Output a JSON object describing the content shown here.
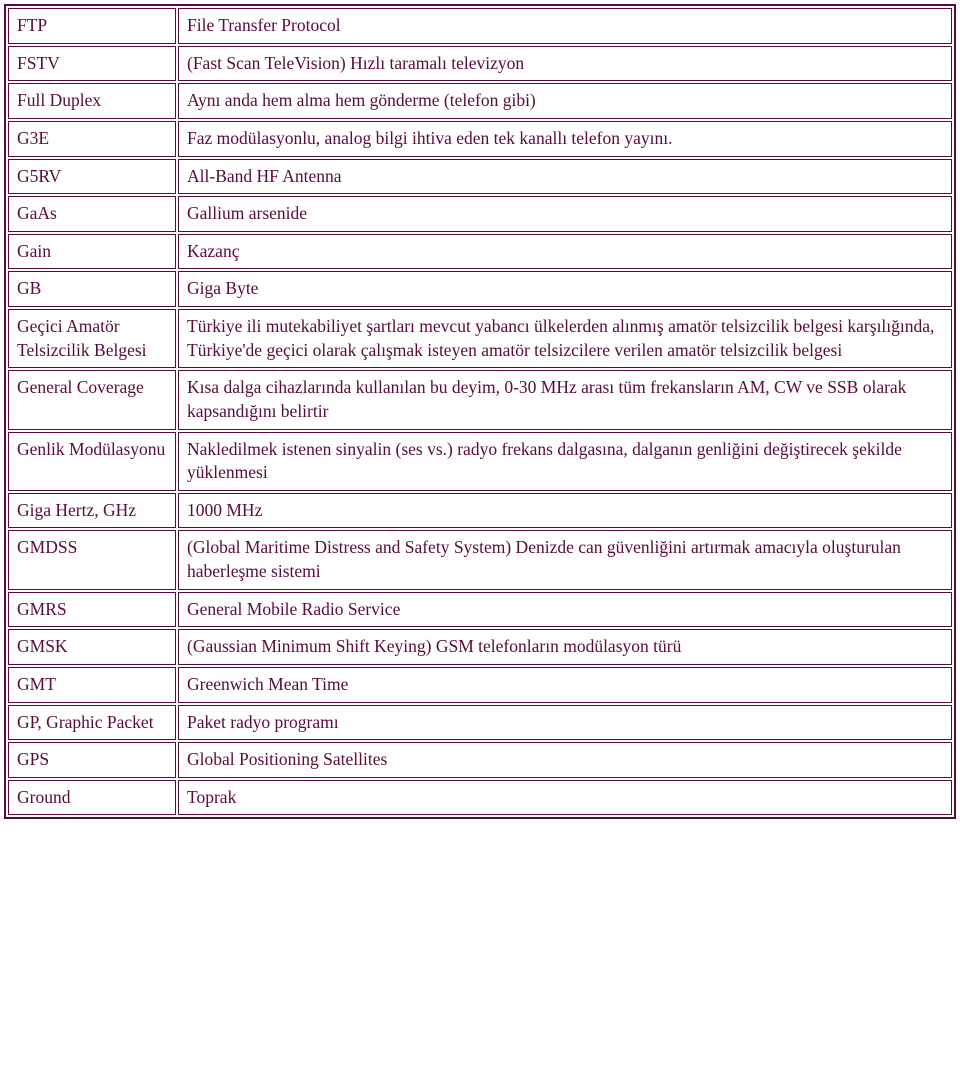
{
  "colors": {
    "text": "#5a0a3c",
    "border": "#5a0a3c",
    "background": "#ffffff"
  },
  "table": {
    "rows": [
      {
        "term": "FTP",
        "def": "File Transfer Protocol"
      },
      {
        "term": "FSTV",
        "def": "(Fast Scan TeleVision) Hızlı taramalı televizyon"
      },
      {
        "term": "Full Duplex",
        "def": "Aynı anda hem alma hem gönderme (telefon gibi)"
      },
      {
        "term": "G3E",
        "def": "Faz modülasyonlu, analog bilgi ihtiva eden tek kanallı telefon yayını."
      },
      {
        "term": "G5RV",
        "def": "All-Band HF Antenna"
      },
      {
        "term": "GaAs",
        "def": "Gallium arsenide"
      },
      {
        "term": "Gain",
        "def": "Kazanç"
      },
      {
        "term": "GB",
        "def": "Giga Byte"
      },
      {
        "term": "Geçici Amatör Telsizcilik Belgesi",
        "def": "Türkiye ili mutekabiliyet şartları mevcut yabancı ülkelerden alınmış amatör telsizcilik belgesi karşılığında, Türkiye'de geçici olarak çalışmak isteyen amatör telsizcilere verilen amatör telsizcilik belgesi"
      },
      {
        "term": "General Coverage",
        "def": "Kısa dalga cihazlarında kullanılan bu deyim, 0-30 MHz arası tüm frekansların AM, CW ve SSB olarak kapsandığını belirtir"
      },
      {
        "term": "Genlik Modülasyonu",
        "def": "Nakledilmek istenen sinyalin (ses vs.) radyo frekans dalgasına, dalganın genliğini değiştirecek şekilde yüklenmesi"
      },
      {
        "term": "Giga Hertz, GHz",
        "def": "1000 MHz"
      },
      {
        "term": "GMDSS",
        "def": "(Global Maritime Distress and Safety System) Denizde can güvenliğini artırmak amacıyla oluşturulan haberleşme sistemi"
      },
      {
        "term": "GMRS",
        "def": "General Mobile Radio Service"
      },
      {
        "term": "GMSK",
        "def": "(Gaussian Minimum Shift Keying) GSM telefonların modülasyon türü"
      },
      {
        "term": "GMT",
        "def": "Greenwich Mean Time"
      },
      {
        "term": "GP, Graphic Packet",
        "def": "Paket radyo programı"
      },
      {
        "term": "GPS",
        "def": "Global Positioning Satellites"
      },
      {
        "term": "Ground",
        "def": "Toprak"
      }
    ]
  }
}
